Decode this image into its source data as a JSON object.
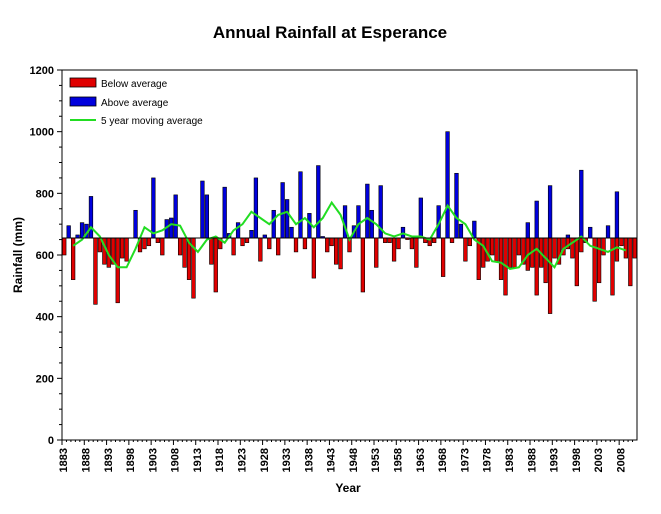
{
  "chart_data": {
    "type": "bar",
    "title": "Annual Rainfall at Esperance",
    "xlabel": "Year",
    "ylabel": "Rainfall (mm)",
    "ylim": [
      0,
      1200
    ],
    "yticks": [
      0,
      200,
      400,
      600,
      800,
      1000,
      1200
    ],
    "xlim": [
      1883,
      2011
    ],
    "xticks": [
      1883,
      1888,
      1893,
      1898,
      1903,
      1908,
      1913,
      1918,
      1923,
      1928,
      1933,
      1938,
      1943,
      1948,
      1953,
      1958,
      1963,
      1968,
      1973,
      1978,
      1983,
      1988,
      1993,
      1998,
      2003,
      2008
    ],
    "baseline": 655,
    "grid": false,
    "legend_position": "top-left",
    "series": [
      {
        "name": "Below average",
        "kind": "bar",
        "color": "#e00000",
        "years": [
          1883,
          1885,
          1890,
          1891,
          1892,
          1893,
          1894,
          1895,
          1896,
          1897,
          1900,
          1901,
          1902,
          1904,
          1905,
          1909,
          1910,
          1911,
          1912,
          1916,
          1917,
          1918,
          1921,
          1923,
          1924,
          1927,
          1929,
          1931,
          1935,
          1937,
          1939,
          1942,
          1943,
          1944,
          1945,
          1947,
          1950,
          1953,
          1955,
          1956,
          1957,
          1958,
          1960,
          1961,
          1962,
          1964,
          1965,
          1966,
          1968,
          1970,
          1973,
          1974,
          1976,
          1977,
          1978,
          1979,
          1980,
          1981,
          1982,
          1983,
          1984,
          1985,
          1986,
          1987,
          1988,
          1989,
          1990,
          1991,
          1992,
          1993,
          1994,
          1995,
          1996,
          1997,
          1998,
          1999,
          2000,
          2002,
          2003,
          2004,
          2006,
          2007,
          2008,
          2009,
          2010,
          2011
        ],
        "values": [
          600,
          520,
          440,
          610,
          570,
          560,
          570,
          445,
          590,
          580,
          610,
          620,
          630,
          640,
          600,
          600,
          560,
          520,
          460,
          570,
          480,
          620,
          600,
          630,
          640,
          580,
          620,
          600,
          610,
          620,
          525,
          610,
          630,
          570,
          555,
          610,
          480,
          560,
          640,
          640,
          580,
          620,
          650,
          620,
          560,
          640,
          630,
          640,
          530,
          640,
          580,
          630,
          520,
          560,
          580,
          600,
          580,
          520,
          470,
          560,
          560,
          600,
          570,
          550,
          560,
          470,
          560,
          510,
          410,
          590,
          570,
          600,
          620,
          590,
          500,
          610,
          640,
          450,
          510,
          600,
          470,
          580,
          630,
          590,
          500,
          590
        ]
      },
      {
        "name": "Above average",
        "kind": "bar",
        "color": "#0000dd",
        "years": [
          1884,
          1886,
          1887,
          1888,
          1889,
          1899,
          1903,
          1906,
          1907,
          1908,
          1914,
          1915,
          1919,
          1920,
          1922,
          1925,
          1926,
          1928,
          1930,
          1932,
          1933,
          1934,
          1936,
          1938,
          1940,
          1941,
          1946,
          1948,
          1949,
          1951,
          1952,
          1954,
          1959,
          1963,
          1967,
          1969,
          1971,
          1972,
          1975,
          1987,
          1989,
          1992,
          1996,
          1999,
          2001,
          2005,
          2007
        ],
        "values": [
          695,
          665,
          705,
          700,
          790,
          745,
          850,
          715,
          720,
          795,
          840,
          795,
          820,
          670,
          705,
          680,
          850,
          665,
          745,
          835,
          780,
          690,
          870,
          735,
          890,
          660,
          760,
          695,
          760,
          830,
          745,
          825,
          690,
          785,
          760,
          1000,
          865,
          700,
          710,
          705,
          775,
          825,
          665,
          875,
          690,
          695,
          805
        ]
      },
      {
        "name": "5 year moving average",
        "kind": "line",
        "color": "#22dd22",
        "years": [
          1885,
          1887,
          1889,
          1891,
          1893,
          1895,
          1897,
          1899,
          1901,
          1903,
          1905,
          1907,
          1909,
          1911,
          1913,
          1915,
          1917,
          1919,
          1921,
          1923,
          1925,
          1927,
          1929,
          1931,
          1933,
          1935,
          1937,
          1939,
          1941,
          1943,
          1945,
          1947,
          1949,
          1951,
          1953,
          1955,
          1957,
          1959,
          1961,
          1963,
          1965,
          1967,
          1969,
          1971,
          1973,
          1975,
          1977,
          1979,
          1981,
          1983,
          1985,
          1987,
          1989,
          1991,
          1993,
          1995,
          1997,
          1999,
          2001,
          2003,
          2005,
          2007,
          2009
        ],
        "values": [
          630,
          650,
          690,
          660,
          600,
          560,
          560,
          620,
          690,
          670,
          680,
          700,
          695,
          640,
          610,
          650,
          660,
          640,
          680,
          700,
          740,
          720,
          700,
          730,
          740,
          700,
          720,
          690,
          720,
          770,
          730,
          650,
          700,
          720,
          700,
          670,
          660,
          670,
          660,
          660,
          650,
          700,
          760,
          720,
          700,
          650,
          630,
          580,
          575,
          555,
          560,
          600,
          620,
          590,
          560,
          620,
          640,
          660,
          630,
          620,
          610,
          625,
          615
        ]
      }
    ]
  }
}
